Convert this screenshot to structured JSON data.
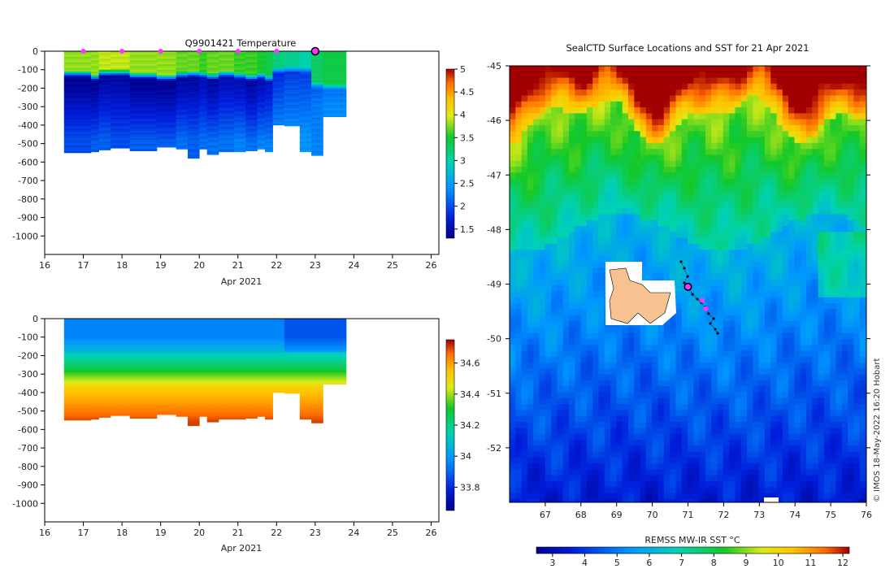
{
  "credit": "© IMOS 18-May-2022 16:20 Hobart",
  "colors": {
    "land": "#f7c28f",
    "marker": "#ff33ff",
    "track": "#000000"
  },
  "chart_data": [
    {
      "id": "temperature_section",
      "type": "heatmap",
      "title": "Q9901421  Temperature",
      "xlabel": "Apr 2021",
      "x_ticks": [
        "16",
        "17",
        "18",
        "19",
        "20",
        "21",
        "22",
        "23",
        "24",
        "25",
        "26"
      ],
      "xlim": [
        16,
        26.2
      ],
      "y_ticks": [
        "0",
        "-100",
        "-200",
        "-300",
        "-400",
        "-500",
        "-600",
        "-700",
        "-800",
        "-900",
        "-1000"
      ],
      "ylim": [
        -1100,
        0
      ],
      "colorbar": {
        "ticks": [
          "1.5",
          "2",
          "2.5",
          "3",
          "3.5",
          "4",
          "4.5",
          "5"
        ],
        "range": [
          1.3,
          5.0
        ]
      },
      "profile_markers_days": [
        17,
        18,
        19,
        20,
        21,
        22
      ],
      "current_marker_day": 23,
      "profiles": [
        {
          "x0": 16.5,
          "x1": 17.2,
          "depth": 550,
          "surf": 3.8,
          "therm": 120,
          "min": 1.3,
          "deep": 2.0
        },
        {
          "x0": 17.2,
          "x1": 17.4,
          "depth": 545,
          "surf": 3.8,
          "therm": 140,
          "min": 1.3,
          "deep": 2.1
        },
        {
          "x0": 17.4,
          "x1": 17.7,
          "depth": 535,
          "surf": 3.9,
          "therm": 115,
          "min": 1.4,
          "deep": 2.1
        },
        {
          "x0": 17.7,
          "x1": 18.2,
          "depth": 525,
          "surf": 3.9,
          "therm": 115,
          "min": 1.4,
          "deep": 2.0
        },
        {
          "x0": 18.2,
          "x1": 18.9,
          "depth": 540,
          "surf": 3.8,
          "therm": 130,
          "min": 1.3,
          "deep": 2.1
        },
        {
          "x0": 18.9,
          "x1": 19.4,
          "depth": 520,
          "surf": 3.8,
          "therm": 140,
          "min": 1.3,
          "deep": 2.1
        },
        {
          "x0": 19.4,
          "x1": 19.7,
          "depth": 530,
          "surf": 3.7,
          "therm": 125,
          "min": 1.4,
          "deep": 2.2
        },
        {
          "x0": 19.7,
          "x1": 20.0,
          "depth": 580,
          "surf": 3.7,
          "therm": 120,
          "min": 1.4,
          "deep": 2.1
        },
        {
          "x0": 20.0,
          "x1": 20.2,
          "depth": 530,
          "surf": 3.6,
          "therm": 125,
          "min": 1.5,
          "deep": 2.2
        },
        {
          "x0": 20.2,
          "x1": 20.5,
          "depth": 560,
          "surf": 3.7,
          "therm": 135,
          "min": 1.4,
          "deep": 2.2
        },
        {
          "x0": 20.5,
          "x1": 20.9,
          "depth": 545,
          "surf": 3.7,
          "therm": 120,
          "min": 1.5,
          "deep": 2.2
        },
        {
          "x0": 20.9,
          "x1": 21.2,
          "depth": 545,
          "surf": 3.6,
          "therm": 130,
          "min": 1.5,
          "deep": 2.3
        },
        {
          "x0": 21.2,
          "x1": 21.5,
          "depth": 540,
          "surf": 3.6,
          "therm": 140,
          "min": 1.4,
          "deep": 2.2
        },
        {
          "x0": 21.5,
          "x1": 21.7,
          "depth": 530,
          "surf": 3.5,
          "therm": 130,
          "min": 1.5,
          "deep": 2.3
        },
        {
          "x0": 21.7,
          "x1": 21.9,
          "depth": 545,
          "surf": 3.4,
          "therm": 145,
          "min": 1.6,
          "deep": 2.3
        },
        {
          "x0": 21.9,
          "x1": 22.2,
          "depth": 400,
          "surf": 3.2,
          "therm": 100,
          "min": 1.8,
          "deep": 2.4
        },
        {
          "x0": 22.2,
          "x1": 22.6,
          "depth": 405,
          "surf": 3.1,
          "therm": 95,
          "min": 1.9,
          "deep": 2.4
        },
        {
          "x0": 22.6,
          "x1": 22.9,
          "depth": 545,
          "surf": 3.0,
          "therm": 100,
          "min": 1.9,
          "deep": 2.4
        },
        {
          "x0": 22.9,
          "x1": 23.2,
          "depth": 565,
          "surf": 3.3,
          "therm": 180,
          "min": 2.1,
          "deep": 2.3
        },
        {
          "x0": 23.2,
          "x1": 23.8,
          "depth": 355,
          "surf": 3.4,
          "therm": 190,
          "min": 2.2,
          "deep": 2.4
        }
      ]
    },
    {
      "id": "salinity_section",
      "type": "heatmap",
      "title": "",
      "xlabel": "Apr 2021",
      "x_ticks": [
        "16",
        "17",
        "18",
        "19",
        "20",
        "21",
        "22",
        "23",
        "24",
        "25",
        "26"
      ],
      "xlim": [
        16,
        26.2
      ],
      "y_ticks": [
        "0",
        "-100",
        "-200",
        "-300",
        "-400",
        "-500",
        "-600",
        "-700",
        "-800",
        "-900",
        "-1000"
      ],
      "ylim": [
        -1100,
        0
      ],
      "colorbar": {
        "ticks": [
          "33.8",
          "34",
          "34.2",
          "34.4",
          "34.6"
        ],
        "range": [
          33.65,
          34.75
        ]
      }
    },
    {
      "id": "sst_map",
      "type": "heatmap",
      "title": "SealCTD Surface Locations and SST for 21 Apr 2021",
      "x_ticks": [
        "67",
        "68",
        "69",
        "70",
        "71",
        "72",
        "73",
        "74",
        "75",
        "76"
      ],
      "xlim": [
        66,
        76
      ],
      "y_ticks": [
        "-45",
        "-46",
        "-47",
        "-48",
        "-49",
        "-50",
        "-51",
        "-52"
      ],
      "ylim": [
        -53,
        -45
      ],
      "colorbar": {
        "label": "REMSS MW-IR SST °C",
        "ticks": [
          "3",
          "4",
          "5",
          "6",
          "7",
          "8",
          "9",
          "10",
          "11",
          "12"
        ],
        "range": [
          2.5,
          12.2
        ]
      },
      "current_location": {
        "lon": 71.0,
        "lat": -49.05
      },
      "recent_locations": [
        {
          "lon": 71.4,
          "lat": -49.3
        },
        {
          "lon": 71.5,
          "lat": -49.45
        }
      ]
    }
  ]
}
